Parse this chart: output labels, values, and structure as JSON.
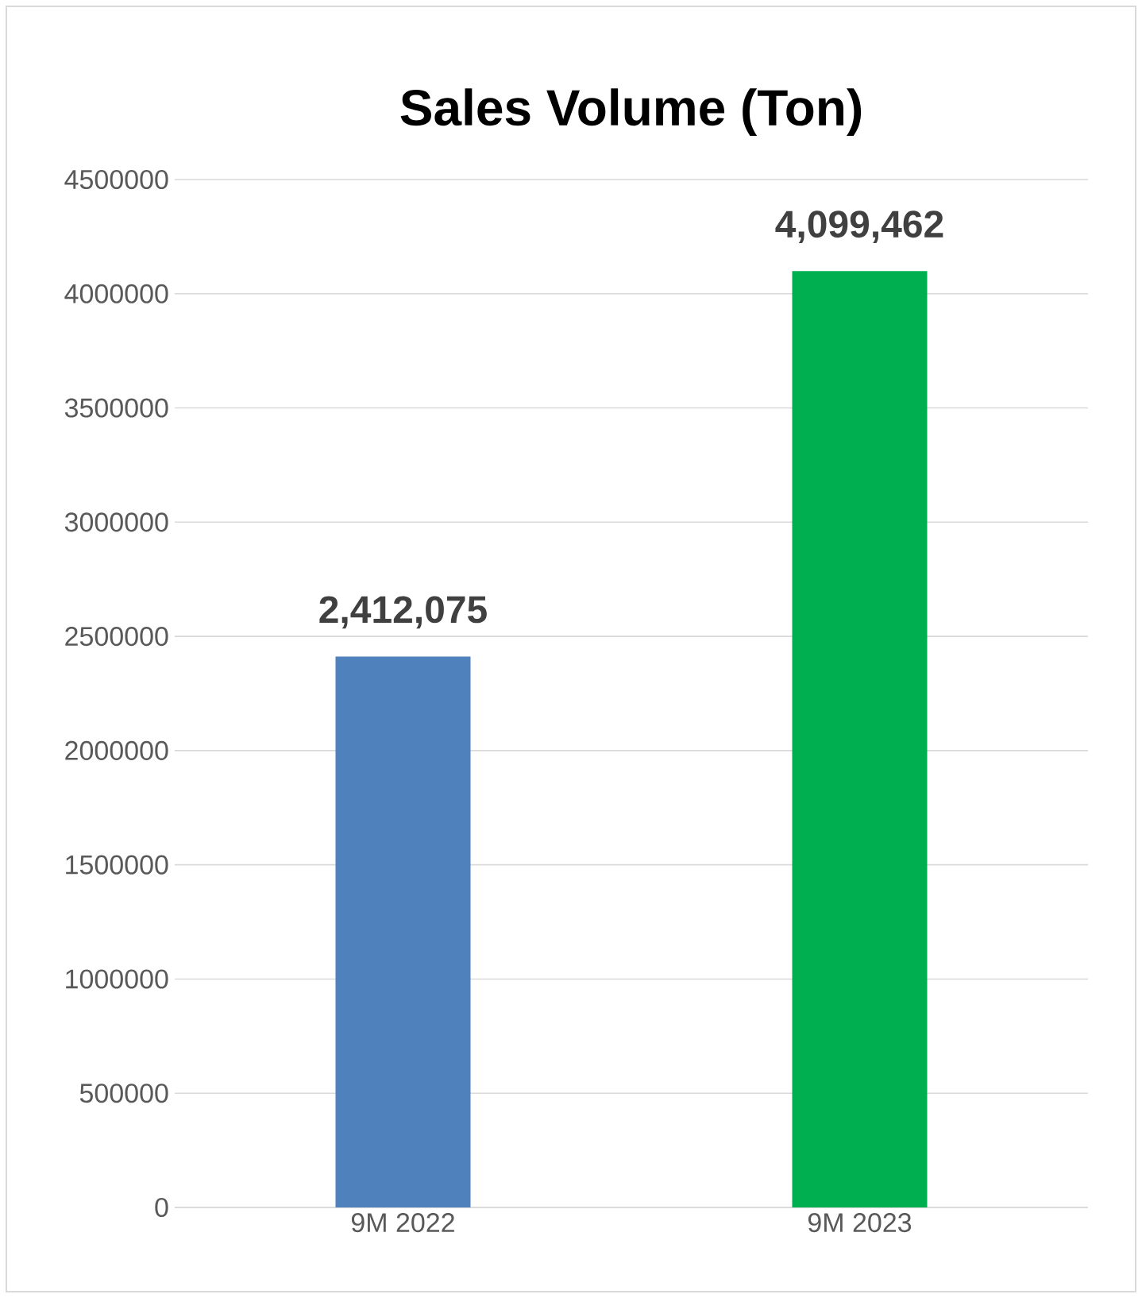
{
  "chart_data": {
    "type": "bar",
    "title": "Sales Volume (Ton)",
    "categories": [
      "9M 2022",
      "9M 2023"
    ],
    "values": [
      2412075,
      4099462
    ],
    "colors": [
      "#4f81bd",
      "#00b050"
    ],
    "value_labels": [
      "2,412,075",
      "4,099,462"
    ],
    "ylim": [
      0,
      4500000
    ],
    "yticks": [
      0,
      500000,
      1000000,
      1500000,
      2000000,
      2500000,
      3000000,
      3500000,
      4000000,
      4500000
    ],
    "grid": "y"
  }
}
